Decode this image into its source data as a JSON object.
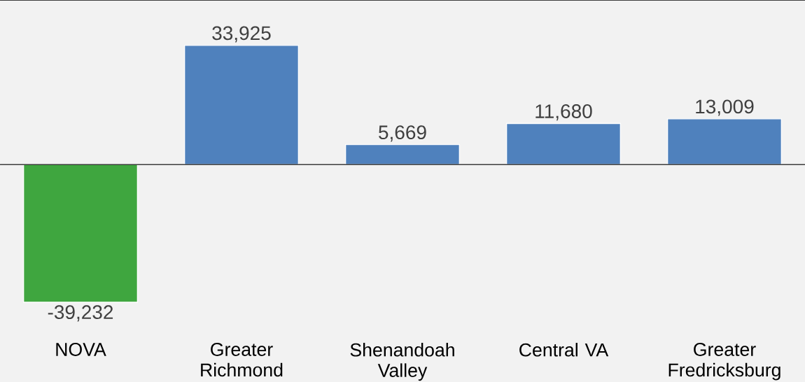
{
  "chart_data": {
    "type": "bar",
    "categories": [
      "NOVA",
      "Greater Richmond",
      "Shenandoah Valley",
      "Central VA",
      "Greater Fredricksburg"
    ],
    "values": [
      -39232,
      33925,
      5669,
      11680,
      13009
    ],
    "colors": [
      "#3fa63f",
      "#4f81bd",
      "#4f81bd",
      "#4f81bd",
      "#4f81bd"
    ],
    "value_labels": [
      "-39,232",
      "33,925",
      "5,669",
      "11,680",
      "13,009"
    ]
  }
}
